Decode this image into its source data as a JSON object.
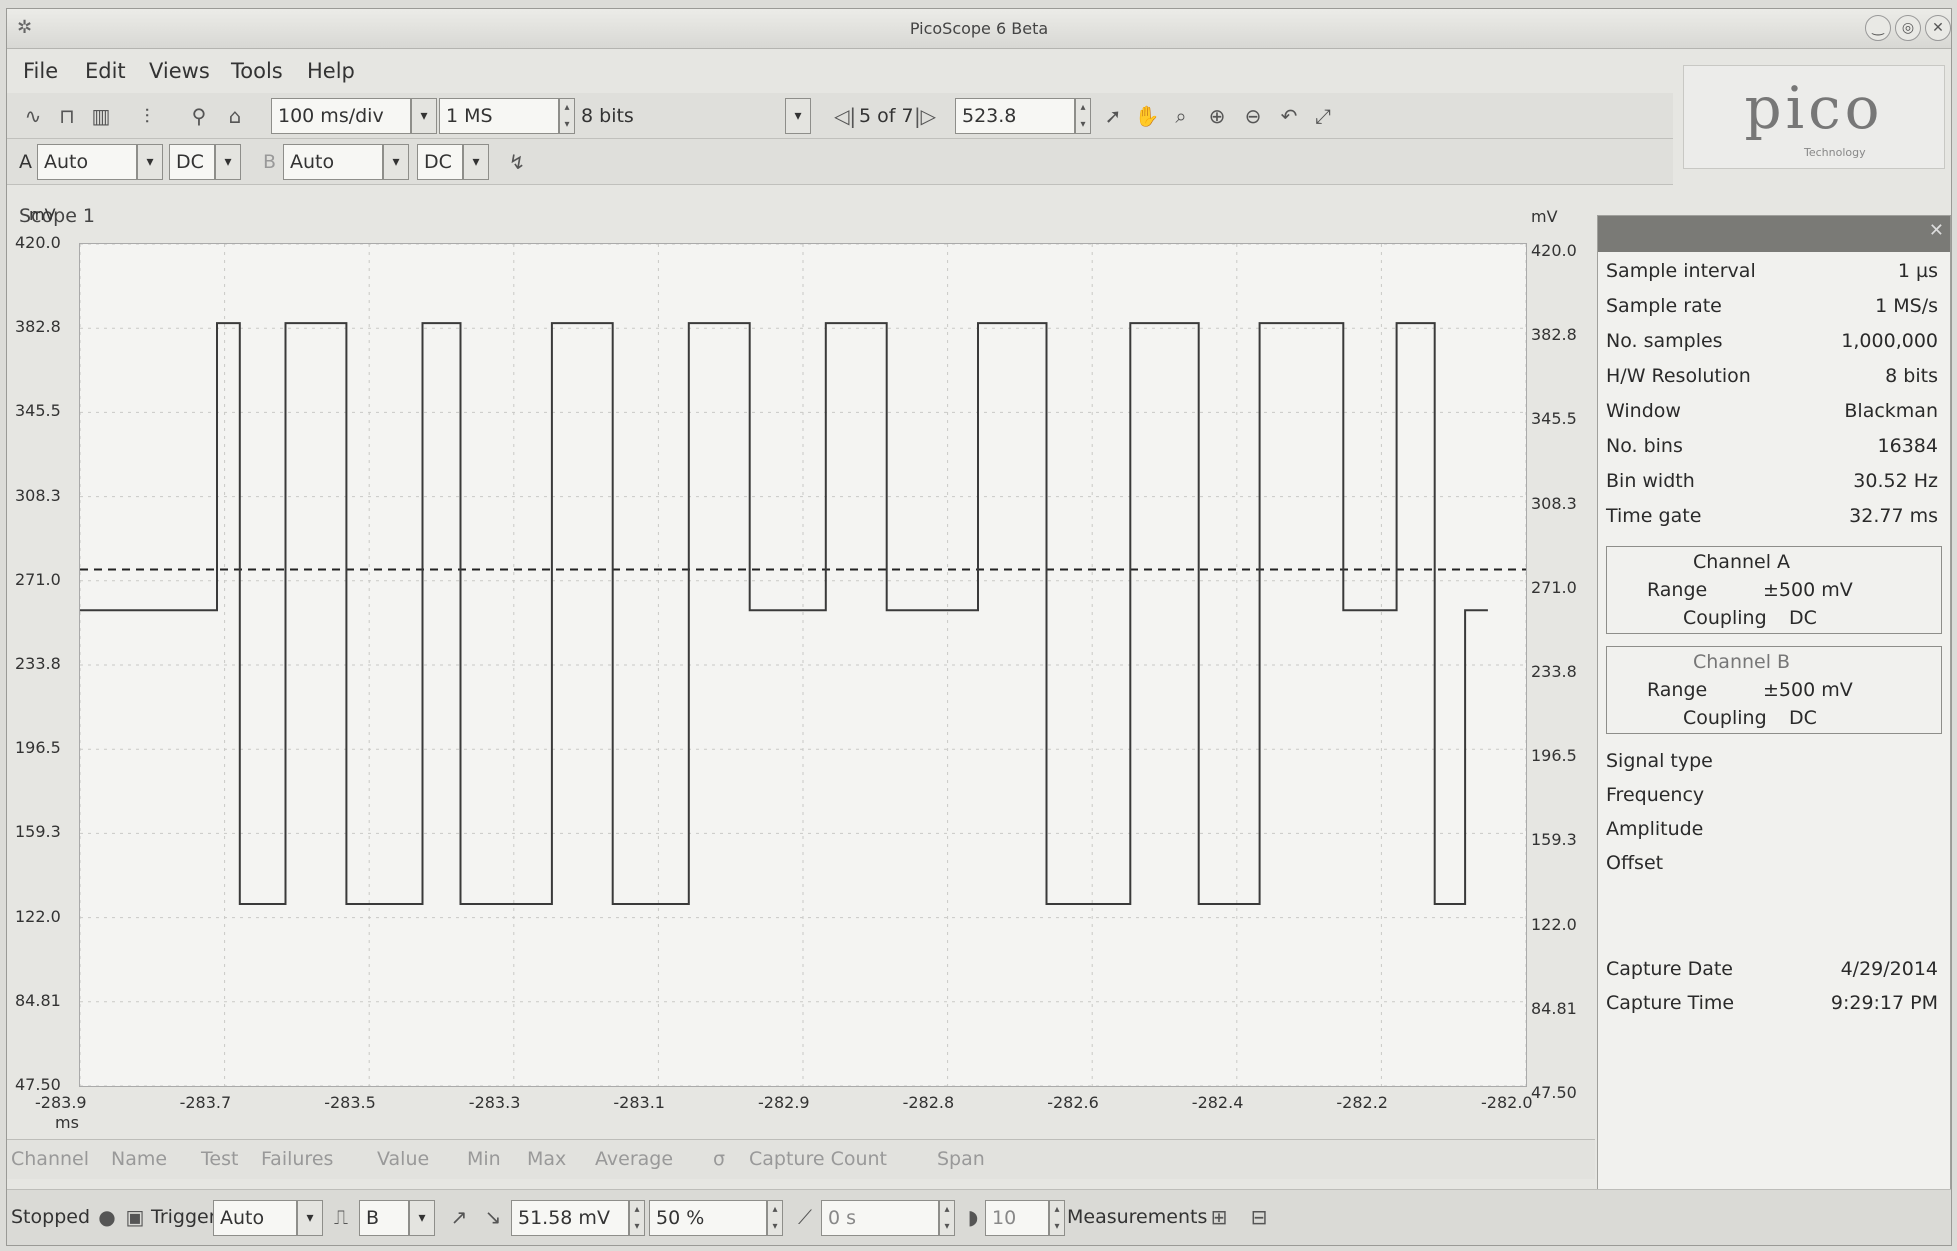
{
  "window": {
    "title": "PicoScope 6 Beta"
  },
  "menu": [
    "File",
    "Edit",
    "Views",
    "Tools",
    "Help"
  ],
  "toolbar": {
    "timebase": "100 ms/div",
    "samples": "1 MS",
    "resolution": "8 bits",
    "buffer": "5 of 7",
    "zoom_value": "523.8"
  },
  "channels_bar": {
    "a_label": "A",
    "a_range": "Auto",
    "a_coupling": "DC",
    "b_label": "B",
    "b_range": "Auto",
    "b_coupling": "DC"
  },
  "logo": {
    "text": "pico",
    "sub": "Technology"
  },
  "scope": {
    "title": "Scope 1",
    "unit_left": "mV",
    "unit_right": "mV",
    "x_unit": "ms",
    "y_ticks_left": [
      "420.0",
      "382.8",
      "345.5",
      "308.3",
      "271.0",
      "233.8",
      "196.5",
      "159.3",
      "122.0",
      "84.81",
      "47.50"
    ],
    "y_ticks_right": [
      "420.0",
      "382.8",
      "345.5",
      "308.3",
      "271.0",
      "233.8",
      "196.5",
      "159.3",
      "122.0",
      "84.81",
      "47.50"
    ],
    "x_ticks": [
      "-283.9",
      "-283.7",
      "-283.5",
      "-283.3",
      "-283.1",
      "-282.9",
      "-282.8",
      "-282.6",
      "-282.4",
      "-282.2",
      "-282.0"
    ],
    "trigger_level_mv": 276,
    "trace_color": "#3a3a3a"
  },
  "chart_data": {
    "type": "line",
    "xlabel": "ms",
    "ylabel": "mV",
    "xlim": [
      -283.9,
      -282.0
    ],
    "ylim": [
      47.5,
      420.0
    ],
    "series": [
      {
        "x": [
          -283.9,
          -283.72,
          -283.72,
          -283.69,
          -283.69,
          -283.63,
          -283.63,
          -283.55,
          -283.55,
          -283.45,
          -283.45,
          -283.4,
          -283.4,
          -283.28,
          -283.28,
          -283.2,
          -283.2,
          -283.1,
          -283.1,
          -283.02,
          -283.02,
          -282.92,
          -282.92,
          -282.84,
          -282.84,
          -282.72,
          -282.72,
          -282.63,
          -282.63,
          -282.52,
          -282.52,
          -282.43,
          -282.43,
          -282.35,
          -282.35,
          -282.24,
          -282.24,
          -282.17,
          -282.17,
          -282.12,
          -282.12,
          -282.08,
          -282.08,
          -282.05
        ],
        "values": [
          258,
          258,
          385,
          385,
          128,
          128,
          385,
          385,
          128,
          128,
          385,
          385,
          128,
          128,
          385,
          385,
          128,
          128,
          385,
          385,
          258,
          258,
          385,
          385,
          258,
          258,
          385,
          385,
          128,
          128,
          385,
          385,
          128,
          128,
          385,
          385,
          258,
          258,
          385,
          385,
          128,
          128,
          258,
          258
        ]
      }
    ]
  },
  "panel": {
    "rows": [
      {
        "k": "Sample interval",
        "v": "1 µs"
      },
      {
        "k": "Sample rate",
        "v": "1 MS/s"
      },
      {
        "k": "No. samples",
        "v": "1,000,000"
      },
      {
        "k": "H/W Resolution",
        "v": "8 bits"
      },
      {
        "k": "Window",
        "v": "Blackman"
      },
      {
        "k": "No. bins",
        "v": "16384"
      },
      {
        "k": "Bin width",
        "v": "30.52 Hz"
      },
      {
        "k": "Time gate",
        "v": "32.77 ms"
      }
    ],
    "channel_a": {
      "title": "Channel  A",
      "range_k": "Range",
      "range_v": "±500 mV",
      "coupling_k": "Coupling",
      "coupling_v": "DC"
    },
    "channel_b": {
      "title": "Channel  B",
      "range_k": "Range",
      "range_v": "±500 mV",
      "coupling_k": "Coupling",
      "coupling_v": "DC"
    },
    "signal_rows": [
      "Signal type",
      "Frequency",
      "Amplitude",
      "Offset"
    ],
    "capture_date_k": "Capture Date",
    "capture_date_v": "4/29/2014",
    "capture_time_k": "Capture Time",
    "capture_time_v": "9:29:17 PM"
  },
  "measurements_bar": [
    "Channel",
    "Name",
    "Test",
    "Failures",
    "Value",
    "Min",
    "Max",
    "Average",
    "σ",
    "Capture Count",
    "Span"
  ],
  "status": {
    "state": "Stopped",
    "trigger_label": "Trigger",
    "trigger_mode": "Auto",
    "trigger_channel": "B",
    "threshold": "51.58 mV",
    "pre_trigger": "50 %",
    "delay": "0 s",
    "count": "10",
    "measurements_label": "Measurements"
  }
}
